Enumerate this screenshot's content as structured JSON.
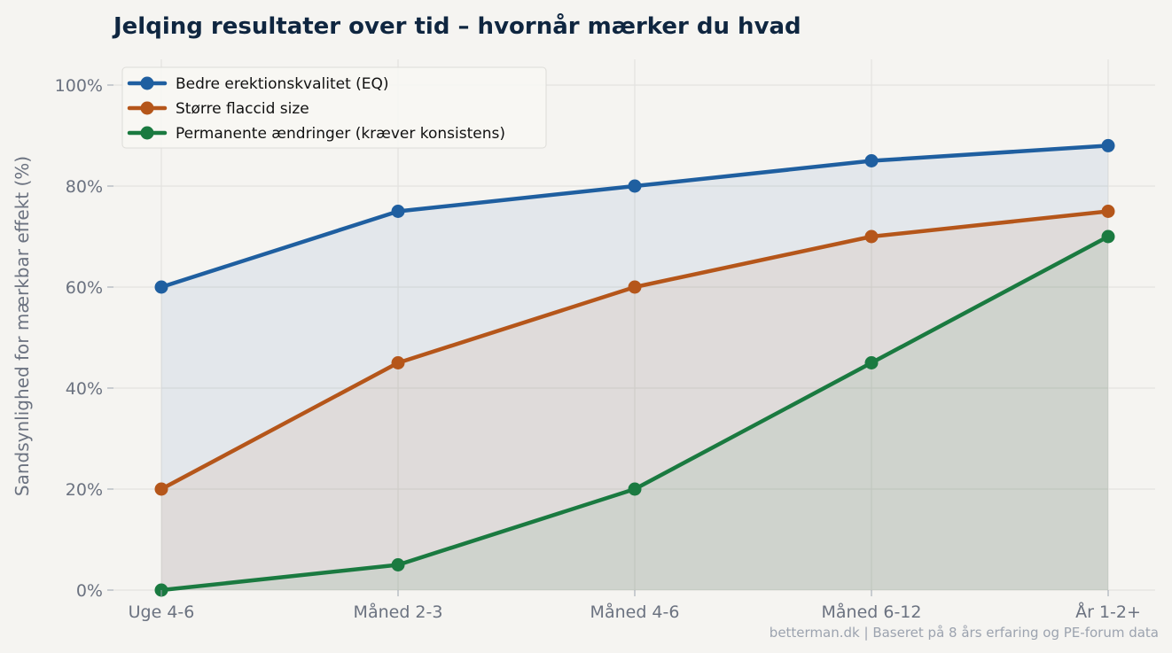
{
  "chart_data": {
    "type": "line",
    "title": "Jelqing resultater over tid – hvornår mærker du hvad",
    "xlabel": "",
    "ylabel": "Sandsynlighed for mærkbar effekt (%)",
    "categories": [
      "Uge 4-6",
      "Måned 2-3",
      "Måned 4-6",
      "Måned 6-12",
      "År 1-2+"
    ],
    "ylim": [
      0,
      100
    ],
    "y_ticks": [
      0,
      20,
      40,
      60,
      80,
      100
    ],
    "y_tick_suffix": "%",
    "grid": true,
    "filled_area": true,
    "legend_position": "top-left",
    "series": [
      {
        "name": "Bedre erektionskvalitet (EQ)",
        "values": [
          60,
          75,
          80,
          85,
          88
        ],
        "color": "#1f5fa0"
      },
      {
        "name": "Større flaccid size",
        "values": [
          20,
          45,
          60,
          70,
          75
        ],
        "color": "#b5561a"
      },
      {
        "name": "Permanente ændringer (kræver konsistens)",
        "values": [
          0,
          5,
          20,
          45,
          70
        ],
        "color": "#1a7a40"
      }
    ],
    "source_note": "betterman.dk | Baseret på 8 års erfaring og PE-forum data"
  },
  "colors": {
    "background": "#f5f4f1",
    "grid": "#e3e2df",
    "title": "#0f2640",
    "tick_text": "#6b7280"
  }
}
